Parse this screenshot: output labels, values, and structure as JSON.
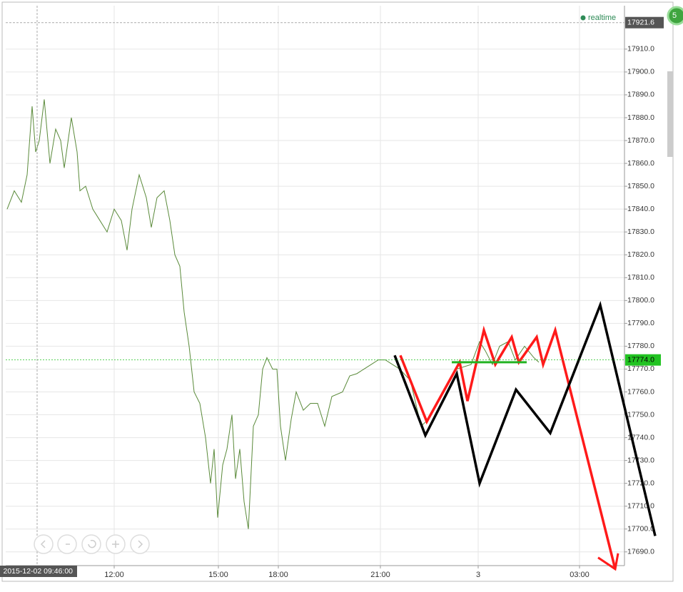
{
  "chart_data": {
    "type": "line",
    "status": "realtime",
    "badge": "5",
    "xlim": [
      8,
      875
    ],
    "ylim": [
      17684,
      17929
    ],
    "xticks": [
      {
        "value": 160,
        "label": "12:00"
      },
      {
        "value": 306,
        "label": "15:00"
      },
      {
        "value": 390,
        "label": "18:00"
      },
      {
        "value": 533,
        "label": "21:00"
      },
      {
        "value": 670,
        "label": "3"
      },
      {
        "value": 812,
        "label": "03:00"
      }
    ],
    "yticks": [
      {
        "value": 17690,
        "label": "17690.0"
      },
      {
        "value": 17700,
        "label": "17700.0"
      },
      {
        "value": 17710,
        "label": "17710.0"
      },
      {
        "value": 17720,
        "label": "17720.0"
      },
      {
        "value": 17730,
        "label": "17730.0"
      },
      {
        "value": 17740,
        "label": "17740.0"
      },
      {
        "value": 17750,
        "label": "17750.0"
      },
      {
        "value": 17760,
        "label": "17760.0"
      },
      {
        "value": 17770,
        "label": "17770.0"
      },
      {
        "value": 17780,
        "label": "17780.0"
      },
      {
        "value": 17790,
        "label": "17790.0"
      },
      {
        "value": 17800,
        "label": "17800.0"
      },
      {
        "value": 17810,
        "label": "17810.0"
      },
      {
        "value": 17820,
        "label": "17820.0"
      },
      {
        "value": 17830,
        "label": "17830.0"
      },
      {
        "value": 17840,
        "label": "17840.0"
      },
      {
        "value": 17850,
        "label": "17850.0"
      },
      {
        "value": 17860,
        "label": "17860.0"
      },
      {
        "value": 17870,
        "label": "17870.0"
      },
      {
        "value": 17880,
        "label": "17880.0"
      },
      {
        "value": 17890,
        "label": "17890.0"
      },
      {
        "value": 17900,
        "label": "17900.0"
      },
      {
        "value": 17910,
        "label": "17910.0"
      }
    ],
    "grid": true,
    "last_price": {
      "value": 17774,
      "label": "17774.0",
      "color": "#22c322"
    },
    "crosshair": {
      "x": 52,
      "x_label": "2015-12-02 09:46:00",
      "y": 17921.6
    },
    "series": [
      {
        "color": "#5a8a3a",
        "width": 1,
        "x": [
          10,
          20,
          30,
          38,
          45,
          50,
          55,
          62,
          70,
          78,
          85,
          90,
          100,
          108,
          112,
          120,
          130,
          140,
          150,
          160,
          170,
          178,
          185,
          195,
          205,
          212,
          220,
          230,
          238,
          245,
          252,
          258,
          265,
          272,
          280,
          288,
          295,
          300,
          305,
          312,
          318,
          325,
          330,
          336,
          342,
          348,
          355,
          362,
          368,
          374,
          382,
          388,
          393,
          400,
          408,
          415,
          425,
          435,
          445,
          455,
          465,
          480,
          490,
          500,
          510,
          520,
          530,
          540,
          550,
          560,
          575,
          590,
          600,
          612,
          625,
          640,
          660,
          672,
          680,
          690,
          700,
          712,
          722,
          735,
          748,
          755
        ],
        "values": [
          17840,
          17848,
          17843,
          17855,
          17885,
          17865,
          17870,
          17888,
          17860,
          17875,
          17870,
          17858,
          17880,
          17865,
          17848,
          17850,
          17840,
          17835,
          17830,
          17840,
          17835,
          17822,
          17840,
          17855,
          17845,
          17832,
          17845,
          17848,
          17835,
          17820,
          17815,
          17795,
          17780,
          17760,
          17755,
          17740,
          17720,
          17735,
          17705,
          17728,
          17735,
          17750,
          17722,
          17735,
          17712,
          17700,
          17745,
          17750,
          17770,
          17775,
          17770,
          17770,
          17745,
          17730,
          17748,
          17760,
          17752,
          17755,
          17755,
          17745,
          17758,
          17760,
          17767,
          17768,
          17770,
          17772,
          17774,
          17774,
          17772,
          17770,
          17765,
          17745,
          17748,
          17755,
          17762,
          17770,
          17772,
          17782,
          17778,
          17772,
          17780,
          17782,
          17774,
          17780,
          17775,
          17773
        ]
      },
      {
        "color": "#ff1a1a",
        "width": 3.5,
        "x": [
          561,
          598,
          644,
          655,
          678,
          694,
          717,
          727,
          752,
          761,
          778,
          862
        ],
        "values": [
          17776,
          17747,
          17773,
          17756,
          17787,
          17772,
          17784,
          17773,
          17784,
          17772,
          17787,
          17682.5
        ]
      },
      {
        "color": "#000000",
        "width": 3.5,
        "x": [
          553,
          596,
          640,
          672,
          723,
          771,
          841,
          918
        ],
        "values": [
          17776,
          17741,
          17768,
          17720,
          17761,
          17742,
          17798,
          17697
        ]
      },
      {
        "color": "#22b322",
        "width": 3,
        "x": [
          633,
          738
        ],
        "values": [
          17773,
          17773
        ]
      }
    ]
  }
}
